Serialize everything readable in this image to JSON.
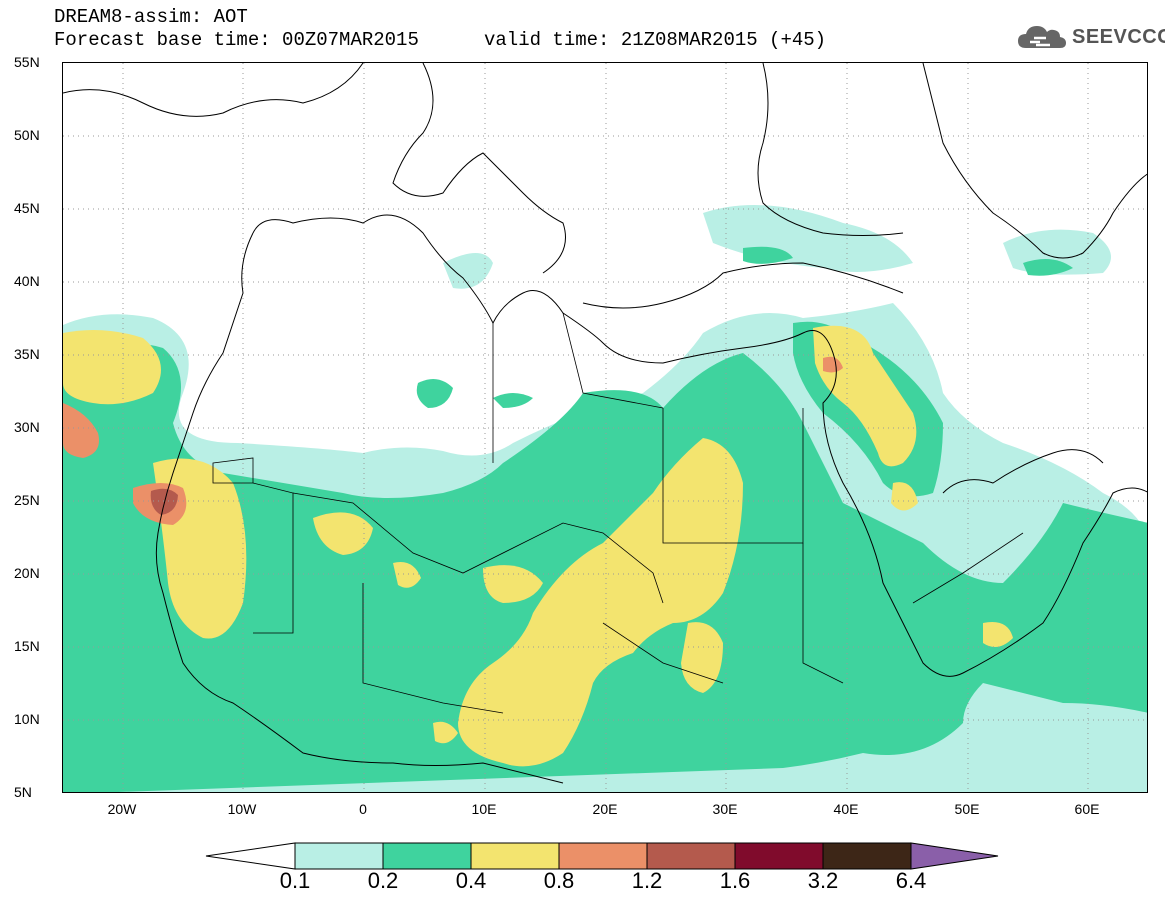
{
  "header": {
    "title": "DREAM8-assim: AOT",
    "base_time": "Forecast base time: 00Z07MAR2015",
    "valid_time": "valid time: 21Z08MAR2015 (+45)",
    "logo_text": "SEEVCCC",
    "logo_icon": "cloud-icon"
  },
  "map": {
    "lat_labels": [
      "55N",
      "50N",
      "45N",
      "40N",
      "35N",
      "30N",
      "25N",
      "20N",
      "15N",
      "10N",
      "5N"
    ],
    "lon_labels": [
      "20W",
      "10W",
      "0",
      "10E",
      "20E",
      "30E",
      "40E",
      "50E",
      "60E"
    ],
    "extent": {
      "lon_min": -25,
      "lon_max": 65,
      "lat_min": 5,
      "lat_max": 55
    }
  },
  "legend": {
    "labels": [
      "0.1",
      "0.2",
      "0.4",
      "0.8",
      "1.2",
      "1.6",
      "3.2",
      "6.4"
    ],
    "colors": [
      "#ffffff",
      "#b9efe5",
      "#3fd39e",
      "#f3e46f",
      "#eb9068",
      "#b45a4d",
      "#800b2c",
      "#3d2617",
      "#8a5fa9"
    ]
  },
  "colors": {
    "c1": "#b9efe5",
    "c2": "#3fd39e",
    "c3": "#f3e46f",
    "c4": "#eb9068",
    "c5": "#b45a4d"
  }
}
